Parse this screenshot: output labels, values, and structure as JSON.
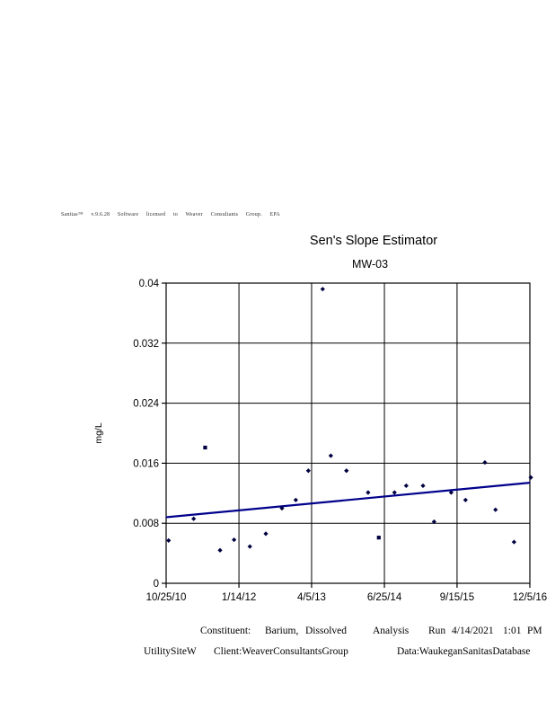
{
  "branding": {
    "license_line": "Sanitas™ v.9.6.28 Software licensed to Weaver Consultants Group. EPA"
  },
  "chart_data": {
    "type": "scatter",
    "title": "Sen's Slope Estimator",
    "subtitle": "MW-03",
    "ylabel": "mg/L",
    "ylim": [
      0,
      0.04
    ],
    "y_ticks": [
      0,
      0.008,
      0.016,
      0.024,
      0.032,
      0.04
    ],
    "y_tick_labels": [
      "0",
      "0.008",
      "0.016",
      "0.024",
      "0.032",
      "0.04"
    ],
    "x_range_days": [
      0,
      2233
    ],
    "x_ticks": [
      {
        "days": 0,
        "label": "10/25/10"
      },
      {
        "days": 447,
        "label": "1/14/12"
      },
      {
        "days": 893,
        "label": "4/5/13"
      },
      {
        "days": 1340,
        "label": "6/25/14"
      },
      {
        "days": 1786,
        "label": "9/15/15"
      },
      {
        "days": 2233,
        "label": "12/5/16"
      }
    ],
    "grid": true,
    "legend": "none",
    "points": [
      {
        "days": 15,
        "value": 0.0057
      },
      {
        "days": 169,
        "value": 0.0086
      },
      {
        "days": 239,
        "value": 0.0181,
        "marker": "square"
      },
      {
        "days": 331,
        "value": 0.0044
      },
      {
        "days": 417,
        "value": 0.0058
      },
      {
        "days": 514,
        "value": 0.0049
      },
      {
        "days": 612,
        "value": 0.0066
      },
      {
        "days": 711,
        "value": 0.01
      },
      {
        "days": 796,
        "value": 0.0111
      },
      {
        "days": 873,
        "value": 0.015
      },
      {
        "days": 961,
        "value": 0.0392
      },
      {
        "days": 1011,
        "value": 0.017
      },
      {
        "days": 1107,
        "value": 0.015
      },
      {
        "days": 1240,
        "value": 0.0121
      },
      {
        "days": 1305,
        "value": 0.0061,
        "marker": "square"
      },
      {
        "days": 1402,
        "value": 0.0121
      },
      {
        "days": 1474,
        "value": 0.013
      },
      {
        "days": 1577,
        "value": 0.013
      },
      {
        "days": 1645,
        "value": 0.0082
      },
      {
        "days": 1750,
        "value": 0.0121
      },
      {
        "days": 1838,
        "value": 0.0111
      },
      {
        "days": 1957,
        "value": 0.0161
      },
      {
        "days": 2022,
        "value": 0.0098
      },
      {
        "days": 2136,
        "value": 0.0055
      },
      {
        "days": 2239,
        "value": 0.0141
      }
    ],
    "trend_line": {
      "name": "Sen's slope line",
      "start": {
        "days": 0,
        "value": 0.0088
      },
      "end": {
        "days": 2233,
        "value": 0.0134
      }
    },
    "colors": {
      "marker": "#000040",
      "trend": "#00008B",
      "grid": "#000000",
      "text": "#000000"
    }
  },
  "footer": {
    "line1": [
      "Constituent:",
      "Barium,",
      "Dissolved",
      "Analysis",
      "Run",
      "4/14/2021",
      "1:01",
      "PM"
    ],
    "line2": [
      "UtilitySiteW",
      "Client:WeaverConsultantsGroup",
      "Data:WaukeganSanitasDatabase"
    ]
  }
}
